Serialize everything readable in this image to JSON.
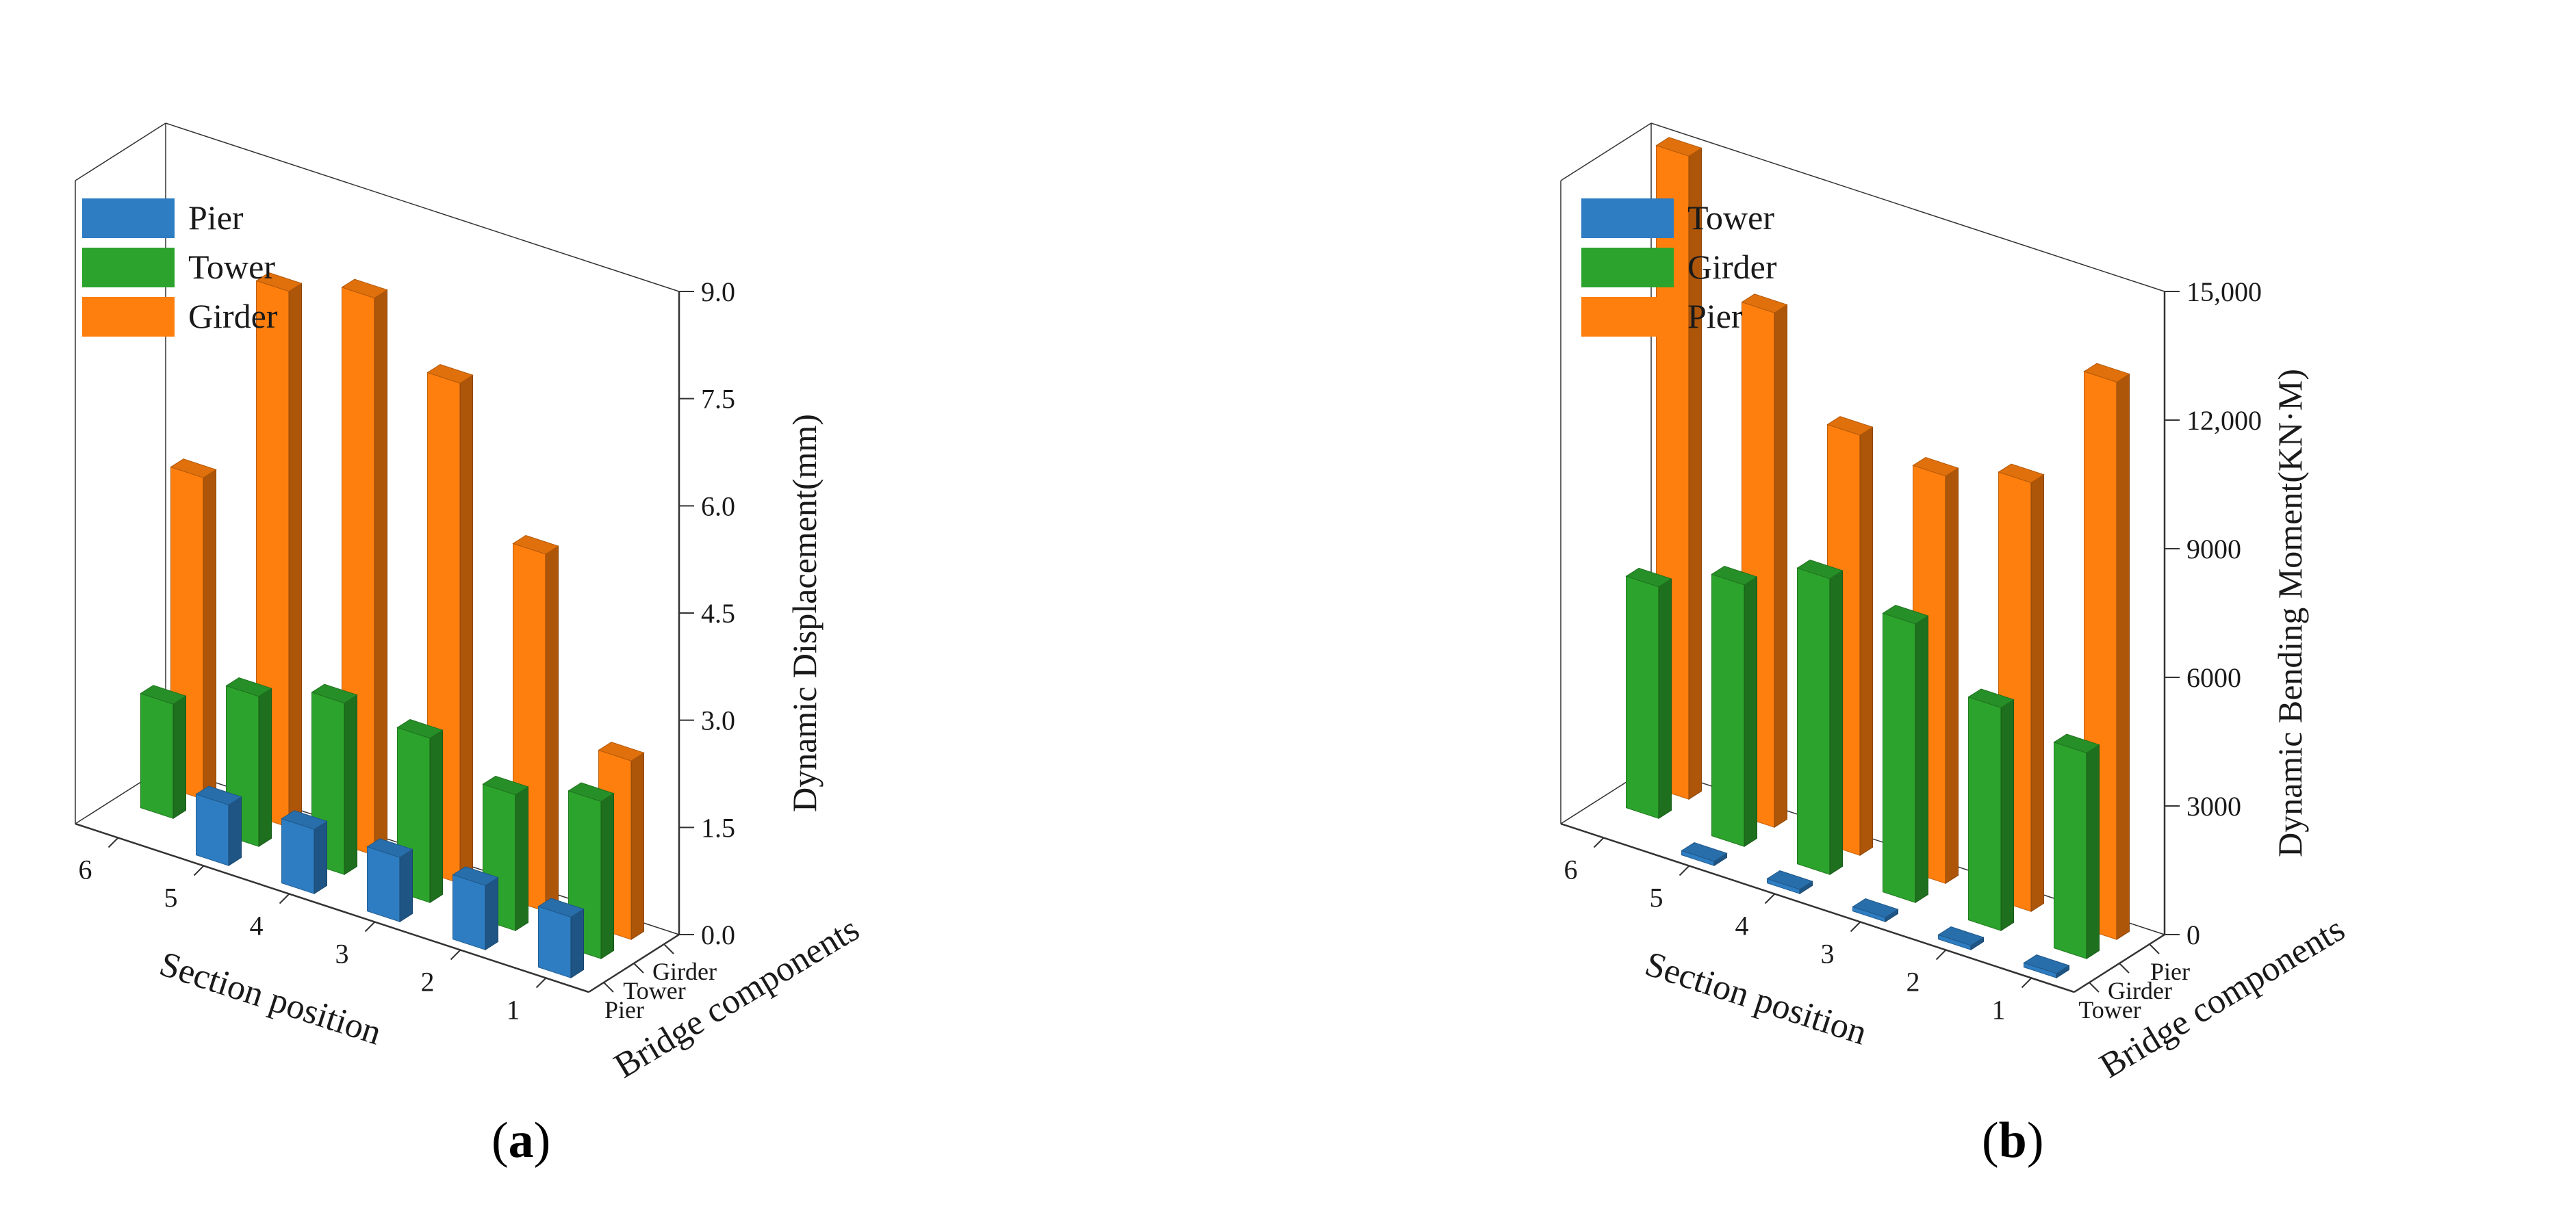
{
  "chart_data": [
    {
      "type": "bar",
      "panel": "a",
      "title": "",
      "x_axis_label": "Section position",
      "depth_axis_label": "Bridge components",
      "z_axis_label": "Dynamic Displacement(mm)",
      "sections": [
        "1",
        "2",
        "3",
        "4",
        "5",
        "6"
      ],
      "components": [
        "Pier",
        "Tower",
        "Girder"
      ],
      "zlim": [
        0,
        9
      ],
      "z_ticks": [
        "0.0",
        "1.5",
        "3.0",
        "4.5",
        "6.0",
        "7.5",
        "9.0"
      ],
      "legend": [
        "Pier",
        "Tower",
        "Girder"
      ],
      "legend_position": "top-left",
      "series": [
        {
          "name": "Pier",
          "color": "#2E7DC2",
          "values": [
            0.85,
            0.9,
            0.9,
            0.9,
            0.85,
            null
          ]
        },
        {
          "name": "Tower",
          "color": "#2CA32C",
          "values": [
            2.2,
            1.9,
            2.3,
            2.4,
            2.1,
            1.6
          ]
        },
        {
          "name": "Girder",
          "color": "#FF7F0E",
          "values": [
            2.5,
            5.0,
            7.0,
            7.8,
            7.5,
            4.5
          ]
        }
      ]
    },
    {
      "type": "bar",
      "panel": "b",
      "title": "",
      "x_axis_label": "Section position",
      "depth_axis_label": "Bridge components",
      "z_axis_label": "Dynamic Bending Moment(KN·M)",
      "sections": [
        "1",
        "2",
        "3",
        "4",
        "5",
        "6"
      ],
      "components": [
        "Tower",
        "Girder",
        "Pier"
      ],
      "zlim": [
        0,
        15000
      ],
      "z_ticks": [
        "0",
        "3000",
        "6000",
        "9000",
        "12,000",
        "15,000"
      ],
      "legend": [
        "Tower",
        "Girder",
        "Pier"
      ],
      "legend_position": "top-left",
      "series": [
        {
          "name": "Tower",
          "color": "#2E7DC2",
          "values": [
            100,
            100,
            100,
            100,
            100,
            null
          ]
        },
        {
          "name": "Girder",
          "color": "#2CA32C",
          "values": [
            4800,
            5200,
            6500,
            6900,
            6100,
            5400
          ]
        },
        {
          "name": "Pier",
          "color": "#FF7F0E",
          "values": [
            13000,
            10000,
            9500,
            9800,
            12000,
            15000
          ]
        }
      ]
    }
  ],
  "panel_labels": {
    "a": "a",
    "b": "b"
  }
}
